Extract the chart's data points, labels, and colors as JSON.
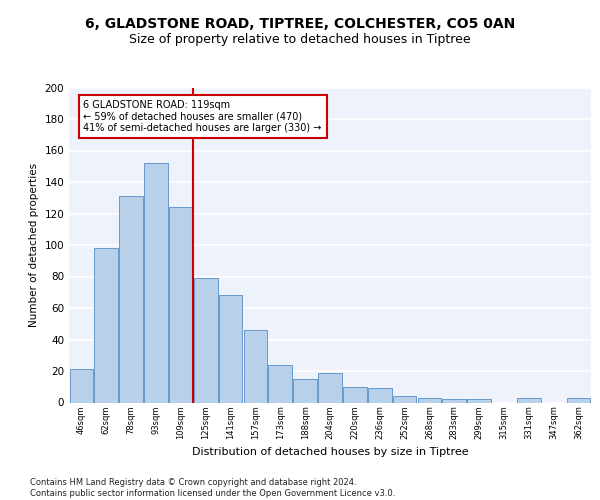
{
  "title1": "6, GLADSTONE ROAD, TIPTREE, COLCHESTER, CO5 0AN",
  "title2": "Size of property relative to detached houses in Tiptree",
  "xlabel": "Distribution of detached houses by size in Tiptree",
  "ylabel": "Number of detached properties",
  "categories": [
    "46sqm",
    "62sqm",
    "78sqm",
    "93sqm",
    "109sqm",
    "125sqm",
    "141sqm",
    "157sqm",
    "173sqm",
    "188sqm",
    "204sqm",
    "220sqm",
    "236sqm",
    "252sqm",
    "268sqm",
    "283sqm",
    "299sqm",
    "315sqm",
    "331sqm",
    "347sqm",
    "362sqm"
  ],
  "values": [
    21,
    98,
    131,
    152,
    124,
    79,
    68,
    46,
    24,
    15,
    19,
    10,
    9,
    4,
    3,
    2,
    2,
    0,
    3,
    0,
    3
  ],
  "bar_color": "#b8d0ea",
  "bar_edge_color": "#6699cc",
  "vline_x_index": 4,
  "vline_color": "#cc0000",
  "annotation_line1": "6 GLADSTONE ROAD: 119sqm",
  "annotation_line2": "← 59% of detached houses are smaller (470)",
  "annotation_line3": "41% of semi-detached houses are larger (330) →",
  "annotation_box_color": "#ffffff",
  "annotation_box_edge": "#cc0000",
  "ylim": [
    0,
    200
  ],
  "yticks": [
    0,
    20,
    40,
    60,
    80,
    100,
    120,
    140,
    160,
    180,
    200
  ],
  "background_color": "#eef2fa",
  "grid_color": "#ffffff",
  "title_fontsize": 10,
  "subtitle_fontsize": 9,
  "footer": "Contains HM Land Registry data © Crown copyright and database right 2024.\nContains public sector information licensed under the Open Government Licence v3.0."
}
